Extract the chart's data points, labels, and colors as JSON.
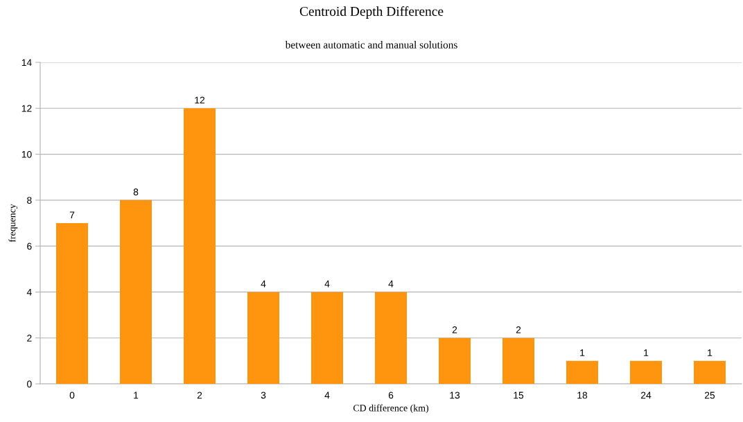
{
  "chart_data": {
    "type": "bar",
    "title": "Centroid Depth Difference",
    "subtitle": "between automatic and manual solutions",
    "xlabel": "CD difference (km)",
    "ylabel": "frequency",
    "categories": [
      "0",
      "1",
      "2",
      "3",
      "4",
      "6",
      "13",
      "15",
      "18",
      "24",
      "25"
    ],
    "values": [
      7,
      8,
      12,
      4,
      4,
      4,
      2,
      2,
      1,
      1,
      1
    ],
    "color": "#ff950e",
    "ylim": [
      0,
      14
    ],
    "yticks": [
      0,
      2,
      4,
      6,
      8,
      10,
      12,
      14
    ],
    "grid": "y",
    "data_labels": true
  }
}
